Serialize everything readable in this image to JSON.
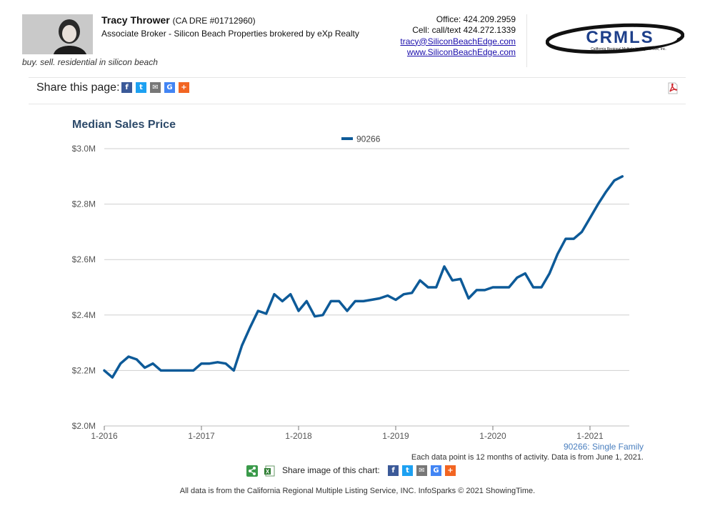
{
  "agent": {
    "name": "Tracy Thrower",
    "dre": "(CA DRE #01712960)",
    "title": "Associate Broker - Silicon Beach Properties brokered by eXp Realty",
    "tagline": "buy. sell. residential in silicon beach"
  },
  "contact": {
    "office": "Office: 424.209.2959",
    "cell": "Cell: call/text 424.272.1339",
    "email": "tracy@SiliconBeachEdge.com",
    "website": "www.SiliconBeachEdge.com"
  },
  "logo": {
    "text": "CRMLS",
    "subtext": "California Regional Multiple Listing Service, Inc."
  },
  "share": {
    "label": "Share this page:",
    "icons": [
      {
        "name": "facebook-icon",
        "glyph": "f",
        "color": "#3b5998"
      },
      {
        "name": "twitter-icon",
        "glyph": "t",
        "color": "#1da1f2"
      },
      {
        "name": "email-icon",
        "glyph": "✉",
        "color": "#777777"
      },
      {
        "name": "google-icon",
        "glyph": "G",
        "color": "#4285f4"
      },
      {
        "name": "more-icon",
        "glyph": "+",
        "color": "#f26522"
      }
    ]
  },
  "chart_data": {
    "type": "line",
    "title": "Median Sales Price",
    "xlabel": "",
    "ylabel": "",
    "x_start": "2016-01",
    "x_tick_labels": [
      "1-2016",
      "1-2017",
      "1-2018",
      "1-2019",
      "1-2020",
      "1-2021"
    ],
    "y_tick_labels": [
      "$2.0M",
      "$2.2M",
      "$2.4M",
      "$2.6M",
      "$2.8M",
      "$3.0M"
    ],
    "ylim": [
      2.0,
      3.0
    ],
    "grid": true,
    "legend_position": "top-center",
    "series": [
      {
        "name": "90266",
        "color": "#0d5a98",
        "values": [
          2.2,
          2.175,
          2.225,
          2.25,
          2.24,
          2.21,
          2.225,
          2.2,
          2.2,
          2.2,
          2.2,
          2.2,
          2.225,
          2.225,
          2.23,
          2.225,
          2.2,
          2.29,
          2.355,
          2.415,
          2.405,
          2.475,
          2.45,
          2.475,
          2.415,
          2.45,
          2.395,
          2.4,
          2.45,
          2.45,
          2.415,
          2.45,
          2.45,
          2.455,
          2.46,
          2.47,
          2.455,
          2.475,
          2.48,
          2.525,
          2.5,
          2.5,
          2.575,
          2.525,
          2.53,
          2.46,
          2.49,
          2.49,
          2.5,
          2.5,
          2.5,
          2.535,
          2.55,
          2.5,
          2.5,
          2.55,
          2.62,
          2.675,
          2.675,
          2.7,
          2.75,
          2.8,
          2.845,
          2.885,
          2.9
        ]
      }
    ]
  },
  "notes": {
    "series_type": "90266: Single Family",
    "data_note": "Each data point is 12 months of activity. Data is from June 1, 2021.",
    "share_image_label": "Share image of this chart:"
  },
  "footer": "All data is from the California Regional Multiple Listing Service, INC. InfoSparks © 2021 ShowingTime."
}
